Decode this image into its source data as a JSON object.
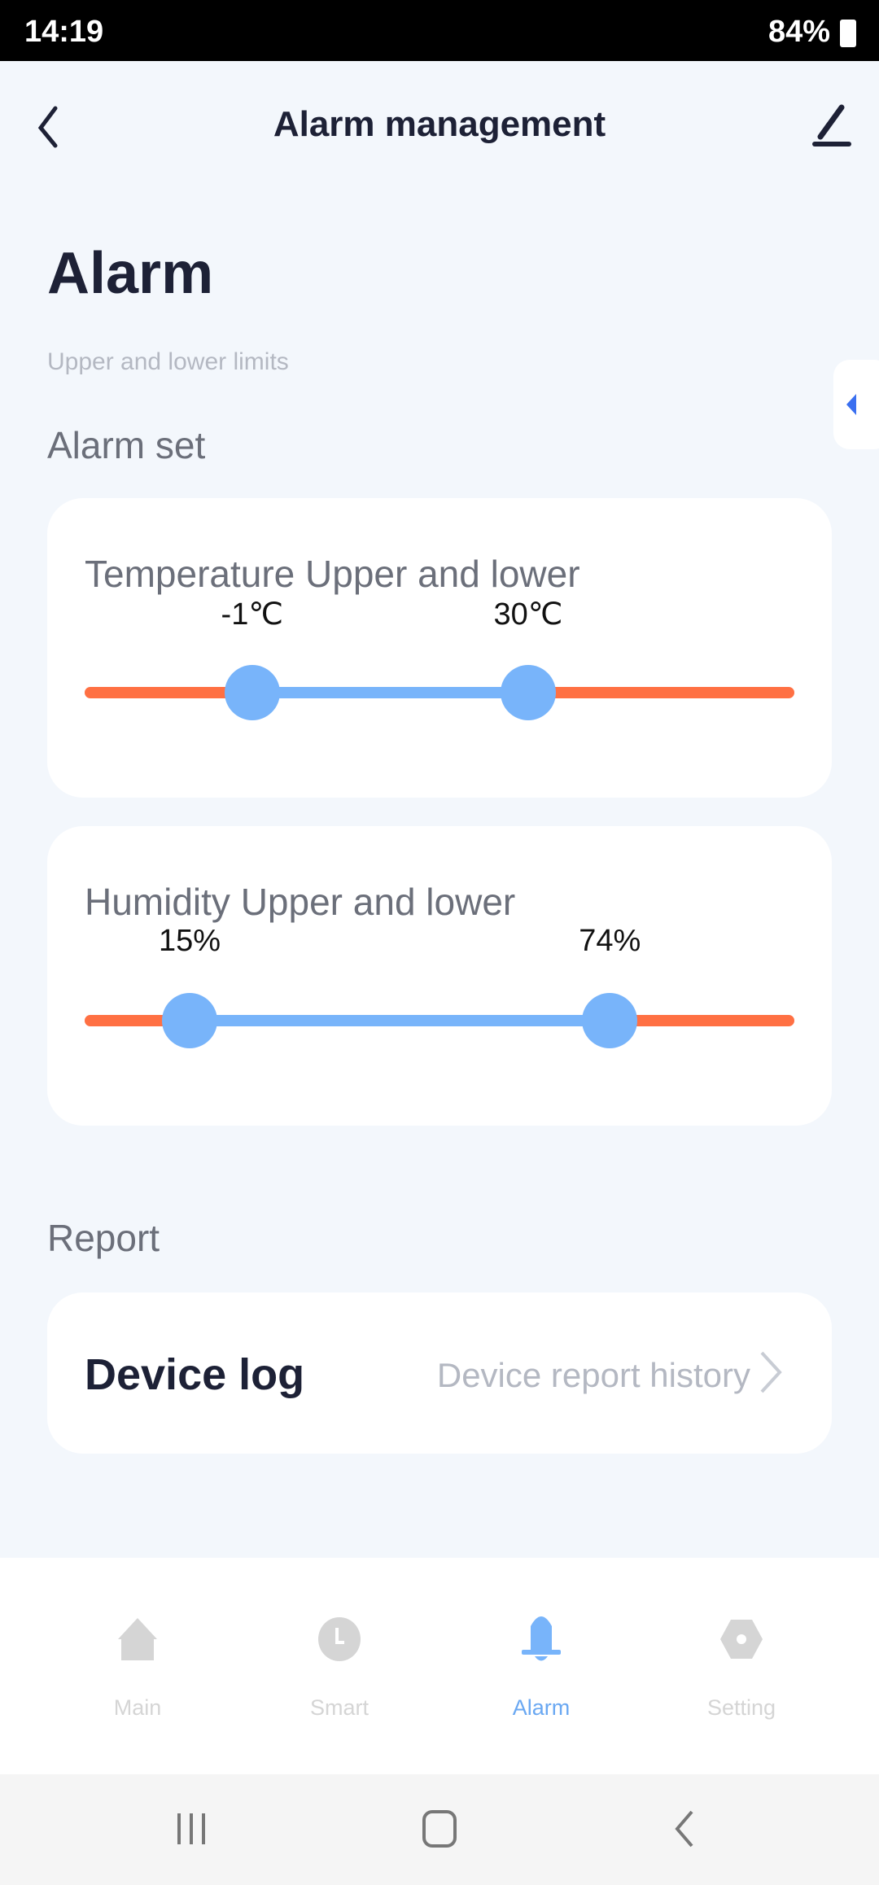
{
  "status": {
    "time": "14:19",
    "battery": "84%"
  },
  "header": {
    "title": "Alarm management"
  },
  "page": {
    "title": "Alarm",
    "subtitle": "Upper and lower limits",
    "section_alarm": "Alarm set",
    "section_report": "Report"
  },
  "temperature": {
    "title": "Temperature Upper and lower",
    "lower_label": "-1℃",
    "upper_label": "30℃",
    "lower_fraction": 0.236,
    "upper_fraction": 0.625
  },
  "humidity": {
    "title": "Humidity Upper and lower",
    "lower_label": "15%",
    "upper_label": "74%",
    "lower_fraction": 0.148,
    "upper_fraction": 0.74
  },
  "report": {
    "label": "Device log",
    "detail": "Device report history"
  },
  "tabs": [
    {
      "label": "Main",
      "icon": "home-icon"
    },
    {
      "label": "Smart",
      "icon": "clock-icon"
    },
    {
      "label": "Alarm",
      "icon": "bell-icon",
      "active": true
    },
    {
      "label": "Setting",
      "icon": "hexagon-gear-icon"
    }
  ],
  "colors": {
    "accent": "#78b4fa",
    "out_of_range": "#ff7043"
  }
}
